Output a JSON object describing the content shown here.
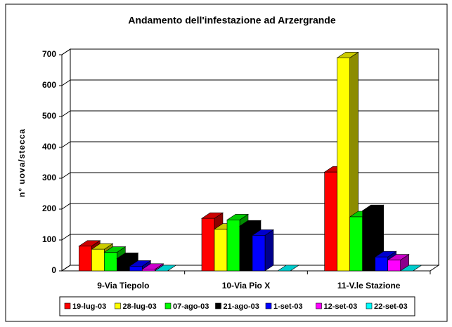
{
  "chart_data": {
    "type": "bar3d",
    "title": "Andamento dell'infestazione ad Arzergrande",
    "y_label": "n° uova/stecca",
    "categories": [
      "9-Via Tiepolo",
      "10-Via Pio X",
      "11-V.le Stazione"
    ],
    "series": [
      {
        "name": "19-lug-03",
        "color": "#ff0000",
        "values": [
          80,
          170,
          320
        ]
      },
      {
        "name": "28-lug-03",
        "color": "#ffff00",
        "values": [
          70,
          135,
          690
        ]
      },
      {
        "name": "07-ago-03",
        "color": "#00ff00",
        "values": [
          60,
          165,
          175
        ]
      },
      {
        "name": "21-ago-03",
        "color": "#000000",
        "values": [
          40,
          145,
          195
        ]
      },
      {
        "name": "1-set-03",
        "color": "#0000ff",
        "values": [
          15,
          115,
          45
        ]
      },
      {
        "name": "12-set-03",
        "color": "#ff00ff",
        "values": [
          5,
          null,
          35
        ]
      },
      {
        "name": "22-set-03",
        "color": "#00ffff",
        "values": [
          0,
          0,
          0
        ]
      }
    ],
    "ylim": [
      0,
      700
    ],
    "yticks": [
      0,
      100,
      200,
      300,
      400,
      500,
      600,
      700
    ],
    "grid": true,
    "legend": "bottom"
  }
}
